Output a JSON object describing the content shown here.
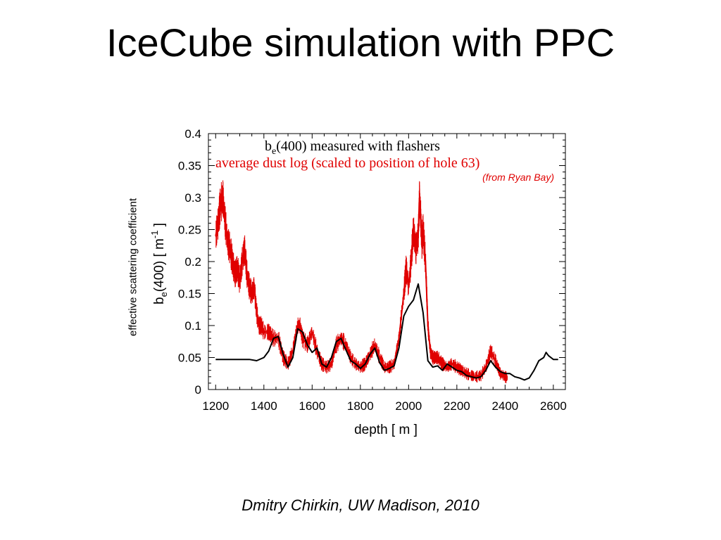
{
  "slide": {
    "title": "IceCube simulation with PPC",
    "side_label": "effective scattering coefficient",
    "credit": "Dmitry Chirkin, UW Madison, 2010"
  },
  "chart_data": {
    "type": "line",
    "xlabel": "depth [ m ]",
    "ylabel": {
      "main": "b",
      "sub": "e",
      "rest": "(400) [ m",
      "sup": "-1",
      "end": " ]"
    },
    "xlim": [
      1170,
      2650
    ],
    "ylim": [
      0,
      0.4
    ],
    "xticks": [
      1200,
      1400,
      1600,
      1800,
      2000,
      2200,
      2400,
      2600
    ],
    "yticks": [
      0,
      0.05,
      0.1,
      0.15,
      0.2,
      0.25,
      0.3,
      0.35,
      0.4
    ],
    "ytick_labels": [
      "0",
      "0.05",
      "0.1",
      "0.15",
      "0.2",
      "0.25",
      "0.3",
      "0.35",
      "0.4"
    ],
    "grid": false,
    "legend": {
      "placement": "top",
      "entries": [
        {
          "main": "b",
          "sub": "e",
          "rest": "(400) measured with flashers",
          "color": "#000000"
        },
        {
          "main": "average dust log (scaled to position of hole 63)",
          "color": "#e00000"
        }
      ]
    },
    "annotations": [
      "(from Ryan Bay)"
    ],
    "series": [
      {
        "color": "#000000",
        "x": [
          1200,
          1300,
          1340,
          1370,
          1400,
          1420,
          1440,
          1460,
          1480,
          1500,
          1520,
          1540,
          1560,
          1580,
          1600,
          1620,
          1640,
          1660,
          1680,
          1700,
          1720,
          1740,
          1760,
          1780,
          1800,
          1820,
          1840,
          1860,
          1880,
          1900,
          1920,
          1940,
          1960,
          1980,
          2000,
          2020,
          2040,
          2060,
          2080,
          2100,
          2120,
          2140,
          2160,
          2180,
          2200,
          2220,
          2240,
          2260,
          2280,
          2300,
          2320,
          2340,
          2360,
          2380,
          2400,
          2420,
          2440,
          2460,
          2480,
          2500,
          2520,
          2540,
          2560,
          2570,
          2580,
          2600,
          2620
        ],
        "y": [
          0.047,
          0.047,
          0.047,
          0.045,
          0.05,
          0.06,
          0.08,
          0.083,
          0.055,
          0.035,
          0.05,
          0.095,
          0.09,
          0.07,
          0.058,
          0.065,
          0.04,
          0.035,
          0.05,
          0.075,
          0.08,
          0.062,
          0.045,
          0.04,
          0.033,
          0.04,
          0.055,
          0.065,
          0.042,
          0.03,
          0.033,
          0.037,
          0.065,
          0.115,
          0.13,
          0.14,
          0.165,
          0.12,
          0.045,
          0.035,
          0.037,
          0.03,
          0.04,
          0.035,
          0.03,
          0.028,
          0.022,
          0.02,
          0.018,
          0.02,
          0.03,
          0.045,
          0.035,
          0.028,
          0.025,
          0.025,
          0.02,
          0.018,
          0.015,
          0.018,
          0.03,
          0.045,
          0.05,
          0.058,
          0.053,
          0.047,
          0.047
        ]
      },
      {
        "color": "#e00000",
        "x": [
          1200,
          1210,
          1220,
          1230,
          1240,
          1250,
          1260,
          1270,
          1280,
          1290,
          1300,
          1310,
          1320,
          1330,
          1340,
          1350,
          1360,
          1370,
          1380,
          1390,
          1400,
          1420,
          1440,
          1460,
          1480,
          1500,
          1520,
          1540,
          1550,
          1560,
          1580,
          1600,
          1620,
          1640,
          1660,
          1680,
          1700,
          1720,
          1740,
          1760,
          1780,
          1800,
          1820,
          1840,
          1860,
          1880,
          1900,
          1920,
          1940,
          1960,
          1980,
          1990,
          2000,
          2010,
          2020,
          2030,
          2040,
          2045,
          2050,
          2055,
          2060,
          2070,
          2080,
          2090,
          2100,
          2120,
          2140,
          2160,
          2180,
          2200,
          2220,
          2240,
          2260,
          2280,
          2300,
          2320,
          2340,
          2360,
          2380,
          2400,
          2410
        ],
        "y": [
          0.24,
          0.26,
          0.29,
          0.3,
          0.26,
          0.23,
          0.22,
          0.2,
          0.18,
          0.19,
          0.17,
          0.2,
          0.22,
          0.18,
          0.16,
          0.15,
          0.16,
          0.12,
          0.1,
          0.1,
          0.09,
          0.09,
          0.08,
          0.08,
          0.05,
          0.04,
          0.06,
          0.1,
          0.1,
          0.08,
          0.07,
          0.09,
          0.06,
          0.04,
          0.035,
          0.04,
          0.07,
          0.08,
          0.07,
          0.05,
          0.04,
          0.035,
          0.04,
          0.055,
          0.07,
          0.05,
          0.035,
          0.035,
          0.04,
          0.08,
          0.15,
          0.19,
          0.16,
          0.2,
          0.25,
          0.22,
          0.24,
          0.3,
          0.27,
          0.23,
          0.25,
          0.2,
          0.1,
          0.06,
          0.05,
          0.05,
          0.04,
          0.035,
          0.04,
          0.035,
          0.03,
          0.025,
          0.022,
          0.02,
          0.022,
          0.035,
          0.06,
          0.045,
          0.025,
          0.02,
          0.018
        ]
      }
    ]
  }
}
